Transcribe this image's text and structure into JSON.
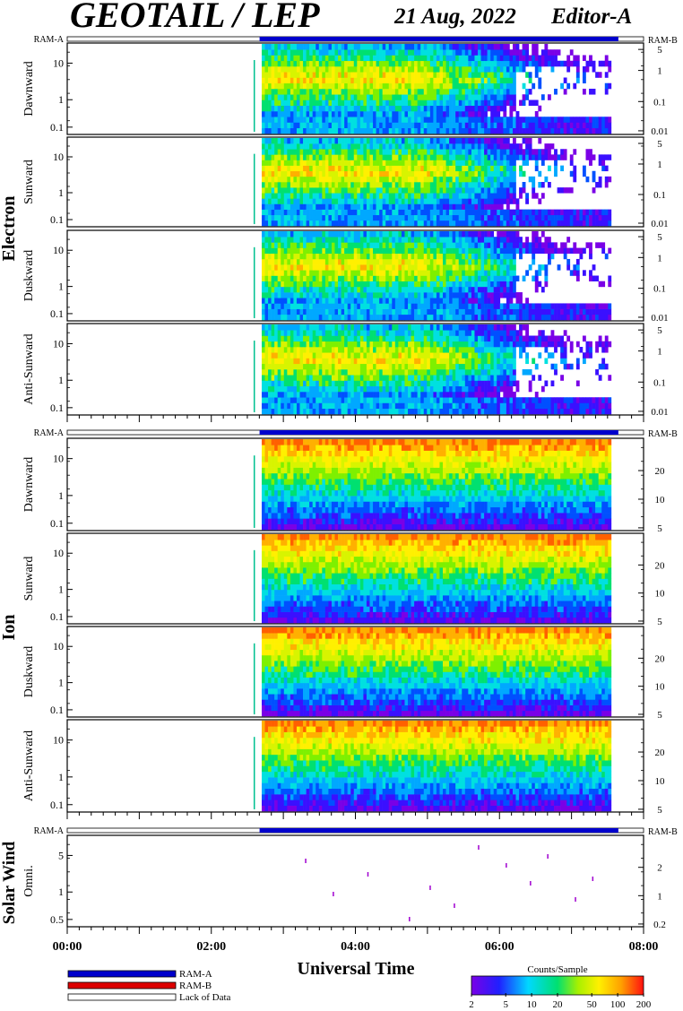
{
  "chart_data": {
    "type": "heatmap",
    "title": "GEOTAIL / LEP",
    "date": "21 Aug, 2022",
    "editor": "Editor-A",
    "xlabel": "Universal Time",
    "x_ticks": [
      "00:00",
      "02:00",
      "04:00",
      "06:00",
      "08:00"
    ],
    "x_range_hours": [
      0,
      8
    ],
    "data_start_hours": 2.6,
    "data_end_hours": 7.65,
    "mode_bar": {
      "left_label": "RAM-A",
      "right_label": "RAM-B",
      "ram_a_start_hours": 2.67,
      "ram_a_end_hours": 7.65
    },
    "groups": [
      {
        "name": "Electron",
        "panels": [
          {
            "name": "Dawnward",
            "left_ticks": [
              "10",
              "1",
              "0.1"
            ],
            "right_ticks": [
              "5",
              "1",
              "0.1",
              "0.01"
            ]
          },
          {
            "name": "Sunward",
            "left_ticks": [
              "10",
              "1",
              "0.1"
            ],
            "right_ticks": [
              "5",
              "1",
              "0.1",
              "0.01"
            ]
          },
          {
            "name": "Duskward",
            "left_ticks": [
              "10",
              "1",
              "0.1"
            ],
            "right_ticks": [
              "5",
              "1",
              "0.1",
              "0.01"
            ]
          },
          {
            "name": "Anti-Sunward",
            "left_ticks": [
              "10",
              "1",
              "0.1"
            ],
            "right_ticks": [
              "5",
              "1",
              "0.1",
              "0.01"
            ]
          }
        ]
      },
      {
        "name": "Ion",
        "panels": [
          {
            "name": "Dawnward",
            "left_ticks": [
              "10",
              "1",
              "0.1"
            ],
            "right_ticks": [
              "20",
              "10",
              "5"
            ]
          },
          {
            "name": "Sunward",
            "left_ticks": [
              "10",
              "1",
              "0.1"
            ],
            "right_ticks": [
              "20",
              "10",
              "5"
            ]
          },
          {
            "name": "Duskward",
            "left_ticks": [
              "10",
              "1",
              "0.1"
            ],
            "right_ticks": [
              "20",
              "10",
              "5"
            ]
          },
          {
            "name": "Anti-Sunward",
            "left_ticks": [
              "10",
              "1",
              "0.1"
            ],
            "right_ticks": [
              "20",
              "10",
              "5"
            ]
          }
        ]
      },
      {
        "name": "Solar Wind",
        "panels": [
          {
            "name": "Omni.",
            "left_ticks": [
              "5",
              "1",
              "0.5"
            ],
            "right_ticks": [
              "2",
              "1",
              "0.2"
            ]
          }
        ]
      }
    ],
    "legend": {
      "entries": [
        {
          "label": "RAM-A",
          "color": "#0000cc"
        },
        {
          "label": "RAM-B",
          "color": "#dd0000"
        },
        {
          "label": "Lack of Data",
          "color": "#ffffff"
        }
      ]
    },
    "colorbar": {
      "label": "Counts/Sample",
      "ticks": [
        "2",
        "5",
        "10",
        "20",
        "50",
        "100",
        "200"
      ],
      "scale": "log",
      "range": [
        2,
        200
      ]
    }
  }
}
